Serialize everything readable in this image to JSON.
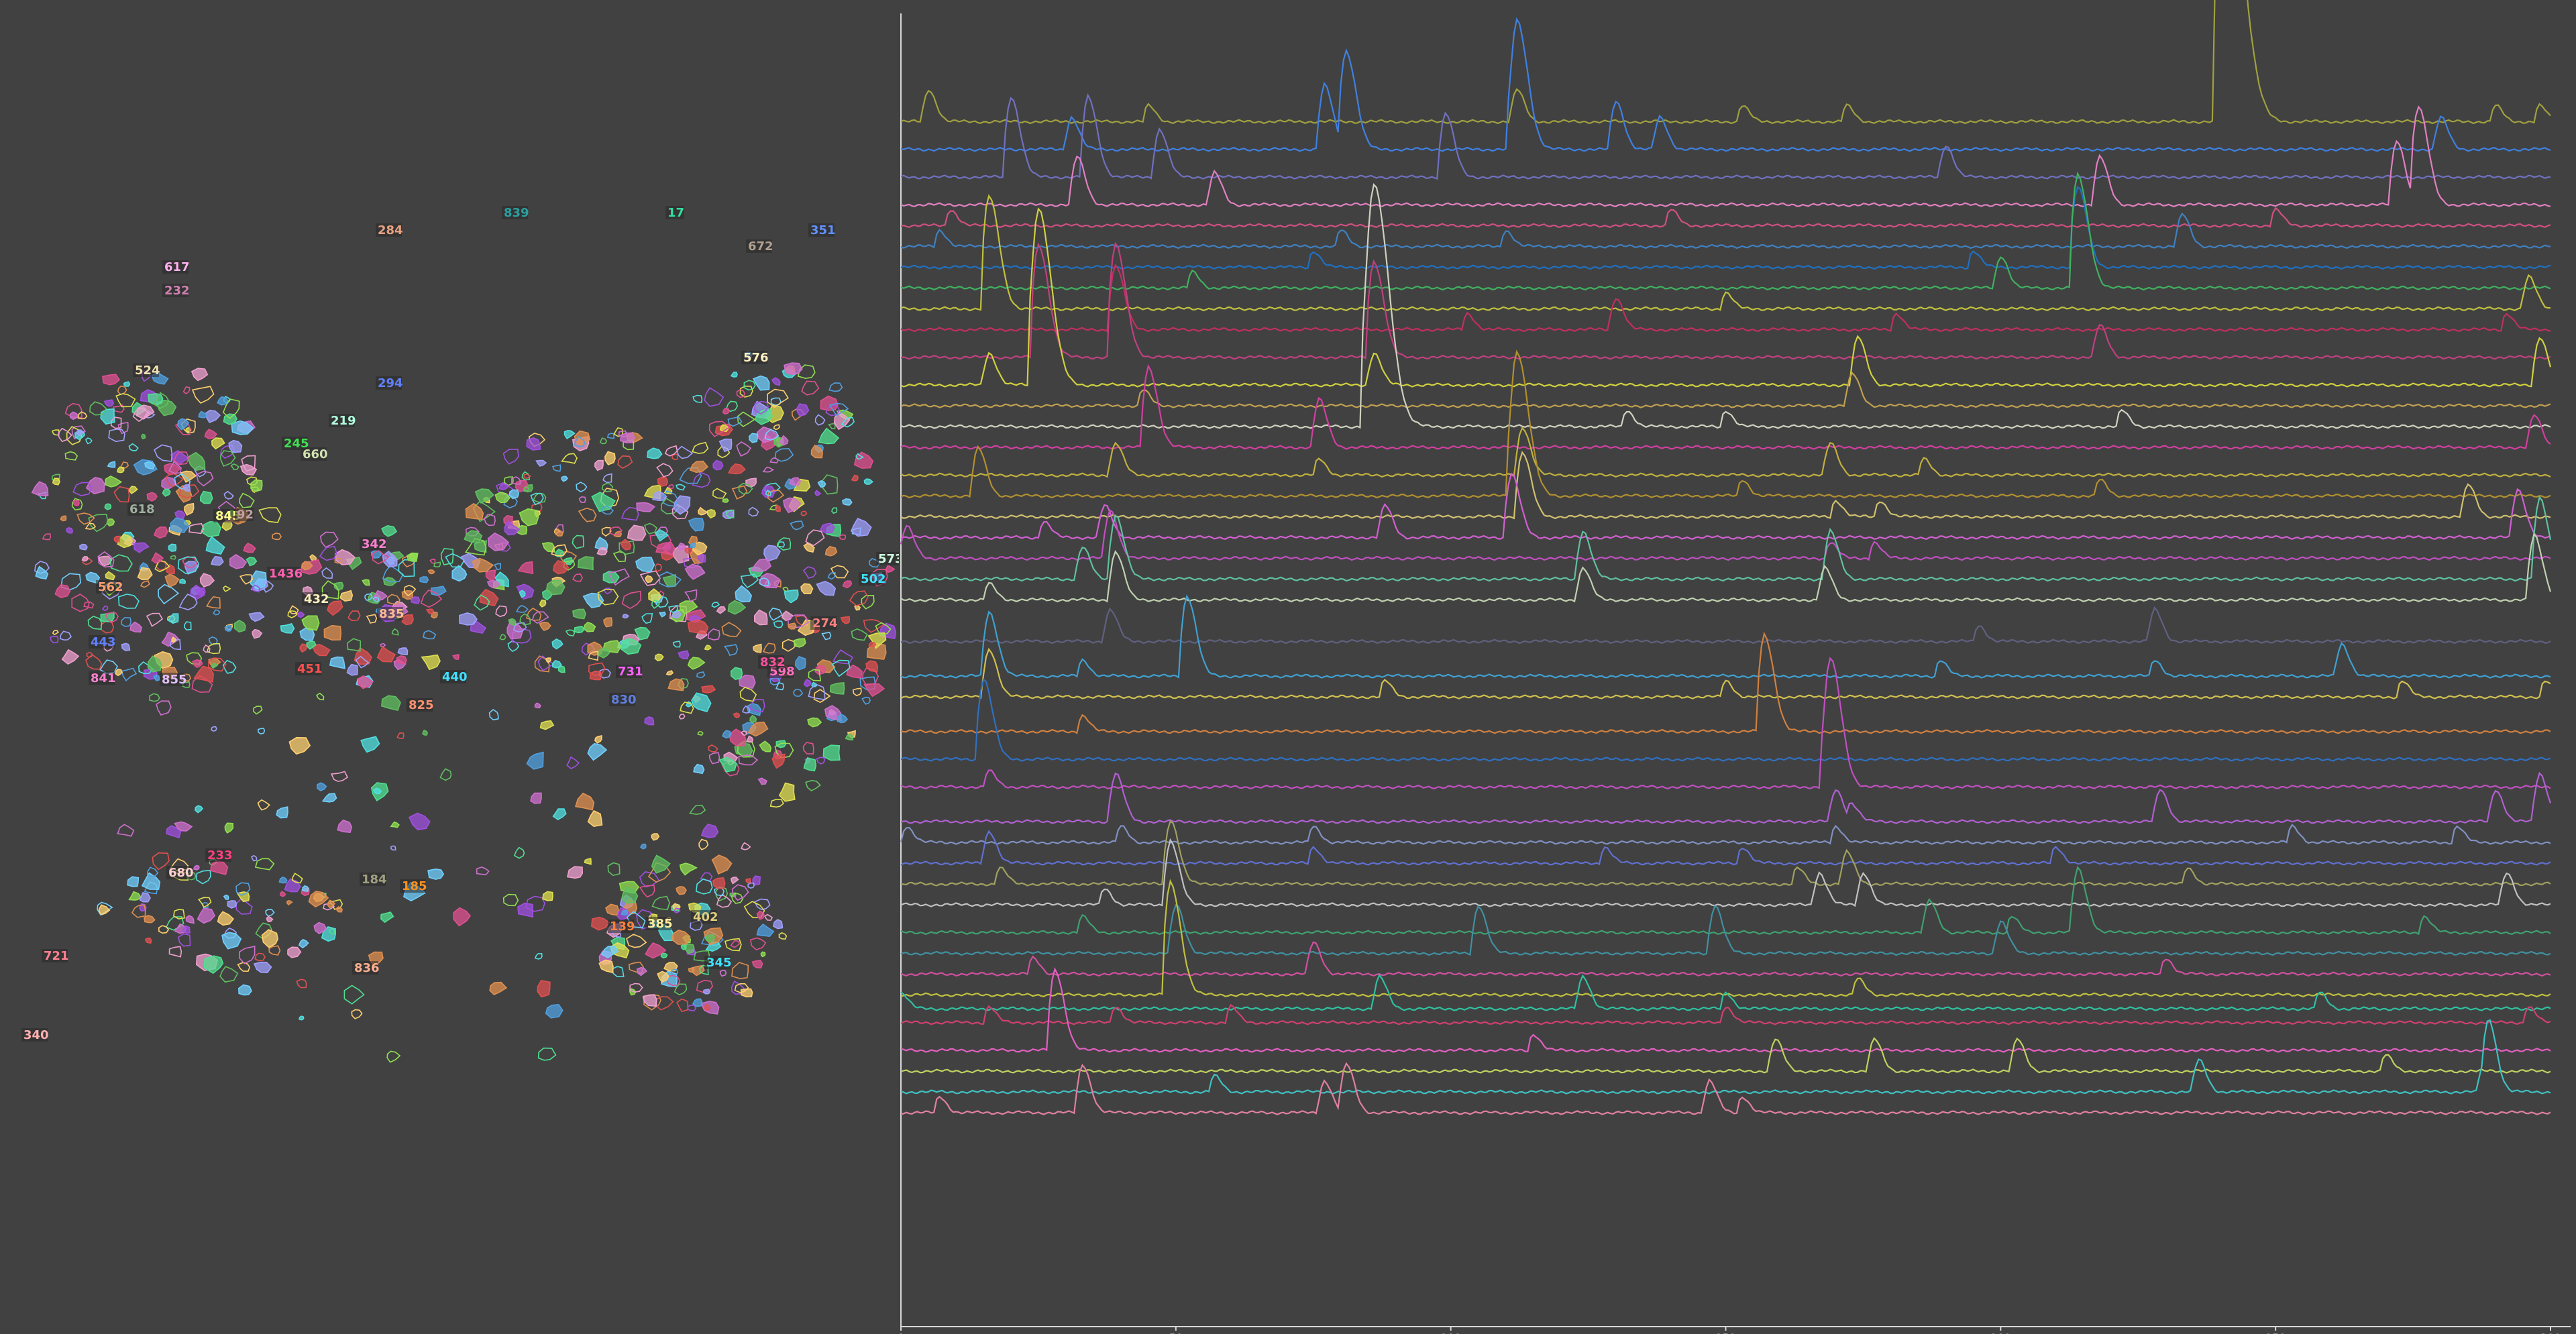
{
  "left_view": {
    "title": "",
    "labels": [
      {
        "text": "284",
        "color": "#e8a080"
      },
      {
        "text": "839",
        "color": "#2aa0a0"
      },
      {
        "text": "17",
        "color": "#30e0a0"
      },
      {
        "text": "672",
        "color": "#b0a090"
      },
      {
        "text": "351",
        "color": "#6090ff"
      },
      {
        "text": "617",
        "color": "#ffb0f0"
      },
      {
        "text": "232",
        "color": "#d080b0"
      },
      {
        "text": "524",
        "color": "#f0e0b0"
      },
      {
        "text": "576",
        "color": "#fff0c0"
      },
      {
        "text": "294",
        "color": "#6080ff"
      },
      {
        "text": "219",
        "color": "#b0ffe0"
      },
      {
        "text": "245",
        "color": "#40e050"
      },
      {
        "text": "660",
        "color": "#d0e0b0"
      },
      {
        "text": "618",
        "color": "#a0b0a0"
      },
      {
        "text": "845",
        "color": "#ffff90"
      },
      {
        "text": "92",
        "color": "#c0a0a0"
      },
      {
        "text": "342",
        "color": "#ff80d0"
      },
      {
        "text": "1436",
        "color": "#ff60b0"
      },
      {
        "text": "562",
        "color": "#ffa070"
      },
      {
        "text": "432",
        "color": "#fff0c0"
      },
      {
        "text": "835",
        "color": "#ffc090"
      },
      {
        "text": "443",
        "color": "#6080ff"
      },
      {
        "text": "451",
        "color": "#ff5050"
      },
      {
        "text": "841",
        "color": "#ff80d0"
      },
      {
        "text": "855",
        "color": "#e0c0ff"
      },
      {
        "text": "440",
        "color": "#40e0ff"
      },
      {
        "text": "825",
        "color": "#ff9070"
      },
      {
        "text": "731",
        "color": "#ff60ff"
      },
      {
        "text": "830",
        "color": "#6080e0"
      },
      {
        "text": "598",
        "color": "#ff70c0"
      },
      {
        "text": "274",
        "color": "#ff8080"
      },
      {
        "text": "502",
        "color": "#40e0ff"
      },
      {
        "text": "573",
        "color": "#d0ffe0"
      },
      {
        "text": "832",
        "color": "#ff50a0"
      },
      {
        "text": "233",
        "color": "#ff4080"
      },
      {
        "text": "680",
        "color": "#ffd0d0"
      },
      {
        "text": "184",
        "color": "#a0a080"
      },
      {
        "text": "185",
        "color": "#ff9020"
      },
      {
        "text": "721",
        "color": "#ff8090"
      },
      {
        "text": "385",
        "color": "#fff0a0"
      },
      {
        "text": "402",
        "color": "#e0d080"
      },
      {
        "text": "139",
        "color": "#ff8040"
      },
      {
        "text": "345",
        "color": "#40e0ff"
      },
      {
        "text": "836",
        "color": "#ffb090"
      },
      {
        "text": "340",
        "color": "#ffb0b0"
      }
    ]
  },
  "chart_data": {
    "type": "line",
    "title": "",
    "xlabel": "",
    "ylabel": "",
    "xlim": [
      0,
      300
    ],
    "x_ticks": [
      "0",
      "50",
      "100",
      "150",
      "200",
      "250",
      "300"
    ],
    "grid": false,
    "legend": "none",
    "series": [
      {
        "color": "#a0a040",
        "baseline": 0.02,
        "peaks": [
          [
            5,
            0.02
          ],
          [
            45,
            0.01
          ],
          [
            112,
            0.02
          ],
          [
            153,
            0.01
          ],
          [
            172,
            0.01
          ],
          [
            241,
            0.18
          ],
          [
            290,
            0.01
          ],
          [
            298,
            0.01
          ]
        ]
      },
      {
        "color": "#4080e0",
        "baseline": 0.04,
        "peaks": [
          [
            31,
            0.02
          ],
          [
            77,
            0.04
          ],
          [
            81,
            0.06
          ],
          [
            112,
            0.08
          ],
          [
            130,
            0.03
          ],
          [
            138,
            0.02
          ],
          [
            280,
            0.02
          ]
        ]
      },
      {
        "color": "#7070c0",
        "baseline": 0.06,
        "peaks": [
          [
            20,
            0.05
          ],
          [
            34,
            0.05
          ],
          [
            47,
            0.03
          ],
          [
            99,
            0.04
          ],
          [
            190,
            0.02
          ]
        ]
      },
      {
        "color": "#e080c0",
        "baseline": 0.08,
        "peaks": [
          [
            32,
            0.03
          ],
          [
            57,
            0.02
          ],
          [
            218,
            0.03
          ],
          [
            272,
            0.04
          ],
          [
            276,
            0.06
          ]
        ]
      },
      {
        "color": "#d05080",
        "baseline": 0.095,
        "peaks": [
          [
            9,
            0.01
          ],
          [
            140,
            0.01
          ],
          [
            250,
            0.01
          ]
        ]
      },
      {
        "color": "#4080c0",
        "baseline": 0.11,
        "peaks": [
          [
            7,
            0.01
          ],
          [
            80,
            0.01
          ],
          [
            110,
            0.01
          ],
          [
            233,
            0.02
          ]
        ]
      },
      {
        "color": "#2070c0",
        "baseline": 0.125,
        "peaks": [
          [
            75,
            0.01
          ],
          [
            195,
            0.01
          ],
          [
            214,
            0.05
          ]
        ]
      },
      {
        "color": "#40b060",
        "baseline": 0.14,
        "peaks": [
          [
            53,
            0.01
          ],
          [
            200,
            0.02
          ],
          [
            214,
            0.07
          ]
        ]
      },
      {
        "color": "#c0c040",
        "baseline": 0.155,
        "peaks": [
          [
            16,
            0.07
          ],
          [
            150,
            0.01
          ],
          [
            296,
            0.02
          ]
        ]
      },
      {
        "color": "#c03060",
        "baseline": 0.17,
        "peaks": [
          [
            39,
            0.04
          ],
          [
            103,
            0.01
          ],
          [
            130,
            0.02
          ],
          [
            181,
            0.01
          ],
          [
            292,
            0.01
          ]
        ]
      },
      {
        "color": "#c04080",
        "baseline": 0.19,
        "peaks": [
          [
            25,
            0.07
          ],
          [
            39,
            0.07
          ],
          [
            86,
            0.06
          ],
          [
            218,
            0.02
          ]
        ]
      },
      {
        "color": "#d0d040",
        "baseline": 0.21,
        "peaks": [
          [
            16,
            0.02
          ],
          [
            25,
            0.11
          ],
          [
            86,
            0.02
          ],
          [
            174,
            0.03
          ],
          [
            298,
            0.03
          ]
        ]
      },
      {
        "color": "#c0a050",
        "baseline": 0.225,
        "peaks": [
          [
            44,
            0.01
          ],
          [
            173,
            0.02
          ]
        ]
      },
      {
        "color": "#d0d0c0",
        "baseline": 0.24,
        "peaks": [
          [
            86,
            0.15
          ],
          [
            132,
            0.01
          ],
          [
            150,
            0.01
          ],
          [
            222,
            0.01
          ]
        ]
      },
      {
        "color": "#d040a0",
        "baseline": 0.255,
        "peaks": [
          [
            45,
            0.05
          ],
          [
            76,
            0.03
          ],
          [
            297,
            0.02
          ]
        ]
      },
      {
        "color": "#c0b040",
        "baseline": 0.275,
        "peaks": [
          [
            39,
            0.02
          ],
          [
            76,
            0.01
          ],
          [
            113,
            0.03
          ],
          [
            169,
            0.02
          ],
          [
            186,
            0.01
          ]
        ]
      },
      {
        "color": "#b09030",
        "baseline": 0.29,
        "peaks": [
          [
            14,
            0.03
          ],
          [
            112,
            0.09
          ],
          [
            153,
            0.01
          ],
          [
            218,
            0.01
          ]
        ]
      },
      {
        "color": "#d0c070",
        "baseline": 0.305,
        "peaks": [
          [
            113,
            0.04
          ],
          [
            170,
            0.01
          ],
          [
            178,
            0.01
          ],
          [
            285,
            0.02
          ]
        ]
      },
      {
        "color": "#d060d0",
        "baseline": 0.32,
        "peaks": [
          [
            26,
            0.01
          ],
          [
            37,
            0.02
          ],
          [
            88,
            0.02
          ],
          [
            111,
            0.04
          ],
          [
            294,
            0.03
          ]
        ]
      },
      {
        "color": "#c050c0",
        "baseline": 0.335,
        "peaks": [
          [
            1,
            0.02
          ],
          [
            38,
            0.03
          ],
          [
            169,
            0.01
          ],
          [
            177,
            0.01
          ]
        ]
      },
      {
        "color": "#60c0a0",
        "baseline": 0.35,
        "peaks": [
          [
            33,
            0.02
          ],
          [
            39,
            0.04
          ],
          [
            124,
            0.03
          ],
          [
            169,
            0.03
          ],
          [
            298,
            0.05
          ]
        ]
      },
      {
        "color": "#c0d0b0",
        "baseline": 0.365,
        "peaks": [
          [
            16,
            0.01
          ],
          [
            39,
            0.03
          ],
          [
            124,
            0.02
          ],
          [
            168,
            0.02
          ],
          [
            297,
            0.04
          ]
        ]
      },
      {
        "color": "#606080",
        "baseline": 0.395,
        "peaks": [
          [
            38,
            0.02
          ],
          [
            196,
            0.01
          ],
          [
            228,
            0.02
          ]
        ]
      },
      {
        "color": "#40a0d0",
        "baseline": 0.42,
        "peaks": [
          [
            16,
            0.04
          ],
          [
            33,
            0.01
          ],
          [
            52,
            0.05
          ],
          [
            189,
            0.01
          ],
          [
            228,
            0.01
          ],
          [
            262,
            0.02
          ]
        ]
      },
      {
        "color": "#d0c050",
        "baseline": 0.435,
        "peaks": [
          [
            16,
            0.03
          ],
          [
            88,
            0.01
          ],
          [
            150,
            0.01
          ],
          [
            273,
            0.01
          ],
          [
            299,
            0.01
          ]
        ]
      },
      {
        "color": "#d08040",
        "baseline": 0.46,
        "peaks": [
          [
            33,
            0.01
          ],
          [
            157,
            0.06
          ]
        ]
      },
      {
        "color": "#3070c0",
        "baseline": 0.48,
        "peaks": [
          [
            15,
            0.05
          ]
        ]
      },
      {
        "color": "#c050c0",
        "baseline": 0.5,
        "peaks": [
          [
            16,
            0.01
          ],
          [
            169,
            0.08
          ]
        ]
      },
      {
        "color": "#b060d0",
        "baseline": 0.525,
        "peaks": [
          [
            39,
            0.03
          ],
          [
            170,
            0.02
          ],
          [
            173,
            0.01
          ],
          [
            229,
            0.02
          ],
          [
            290,
            0.02
          ],
          [
            298,
            0.03
          ]
        ]
      },
      {
        "color": "#8090c0",
        "baseline": 0.54,
        "peaks": [
          [
            1,
            0.01
          ],
          [
            40,
            0.01
          ],
          [
            75,
            0.01
          ],
          [
            170,
            0.01
          ],
          [
            253,
            0.01
          ],
          [
            283,
            0.01
          ]
        ]
      },
      {
        "color": "#6070d0",
        "baseline": 0.555,
        "peaks": [
          [
            16,
            0.02
          ],
          [
            75,
            0.01
          ],
          [
            128,
            0.01
          ],
          [
            153,
            0.01
          ],
          [
            210,
            0.01
          ]
        ]
      },
      {
        "color": "#a0a060",
        "baseline": 0.57,
        "peaks": [
          [
            18,
            0.01
          ],
          [
            49,
            0.04
          ],
          [
            163,
            0.01
          ],
          [
            172,
            0.02
          ],
          [
            234,
            0.01
          ]
        ]
      },
      {
        "color": "#c0c0c0",
        "baseline": 0.585,
        "peaks": [
          [
            37,
            0.01
          ],
          [
            49,
            0.04
          ],
          [
            167,
            0.02
          ],
          [
            175,
            0.02
          ],
          [
            292,
            0.02
          ]
        ]
      },
      {
        "color": "#40a070",
        "baseline": 0.605,
        "peaks": [
          [
            33,
            0.01
          ],
          [
            187,
            0.02
          ],
          [
            202,
            0.01
          ],
          [
            214,
            0.04
          ],
          [
            277,
            0.01
          ]
        ]
      },
      {
        "color": "#4090a0",
        "baseline": 0.62,
        "peaks": [
          [
            50,
            0.03
          ],
          [
            105,
            0.03
          ],
          [
            148,
            0.03
          ],
          [
            200,
            0.02
          ]
        ]
      },
      {
        "color": "#d050a0",
        "baseline": 0.635,
        "peaks": [
          [
            24,
            0.01
          ],
          [
            75,
            0.02
          ],
          [
            230,
            0.01
          ]
        ]
      },
      {
        "color": "#c0c040",
        "baseline": 0.65,
        "peaks": [
          [
            49,
            0.07
          ],
          [
            174,
            0.01
          ]
        ]
      },
      {
        "color": "#30c0a0",
        "baseline": 0.66,
        "peaks": [
          [
            0,
            0.01
          ],
          [
            87,
            0.02
          ],
          [
            124,
            0.02
          ],
          [
            150,
            0.01
          ],
          [
            258,
            0.01
          ]
        ]
      },
      {
        "color": "#d04070",
        "baseline": 0.67,
        "peaks": [
          [
            16,
            0.01
          ],
          [
            39,
            0.01
          ],
          [
            60,
            0.01
          ],
          [
            150,
            0.01
          ],
          [
            296,
            0.01
          ]
        ]
      },
      {
        "color": "#e060c0",
        "baseline": 0.69,
        "peaks": [
          [
            28,
            0.05
          ],
          [
            115,
            0.01
          ]
        ]
      },
      {
        "color": "#c0d060",
        "baseline": 0.705,
        "peaks": [
          [
            159,
            0.02
          ],
          [
            177,
            0.02
          ],
          [
            203,
            0.02
          ],
          [
            270,
            0.01
          ]
        ]
      },
      {
        "color": "#40c0c0",
        "baseline": 0.72,
        "peaks": [
          [
            57,
            0.01
          ],
          [
            236,
            0.02
          ],
          [
            288,
            0.02
          ],
          [
            289,
            0.03
          ]
        ]
      },
      {
        "color": "#e080a0",
        "baseline": 0.735,
        "peaks": [
          [
            7,
            0.01
          ],
          [
            33,
            0.03
          ],
          [
            77,
            0.02
          ],
          [
            81,
            0.03
          ],
          [
            147,
            0.02
          ],
          [
            153,
            0.01
          ]
        ]
      }
    ]
  }
}
